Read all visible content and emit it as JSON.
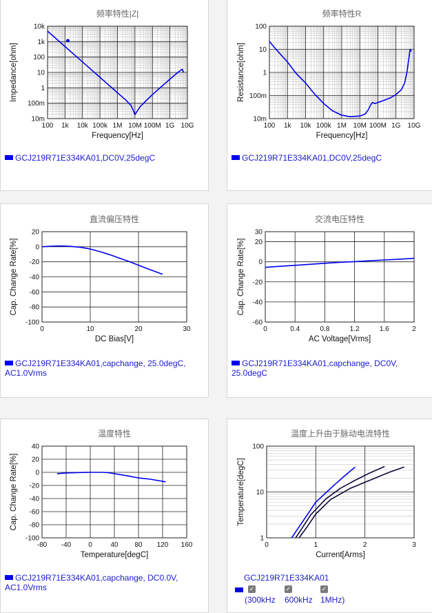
{
  "panels": [
    {
      "id": "impedance",
      "legend": "GCJ219R71E334KA01,DC0V,25degC",
      "chart_data": {
        "type": "line",
        "title": "频率特性|Z|",
        "xlabel": "Frequency[Hz]",
        "ylabel": "Impedance[ohm]",
        "xscale": "log",
        "yscale": "log",
        "xlim": [
          100,
          10000000000
        ],
        "ylim": [
          0.01,
          10000
        ],
        "xticks": [
          100,
          1000,
          10000,
          100000,
          1000000,
          10000000,
          100000000,
          1000000000,
          10000000000
        ],
        "xticklabels": [
          "100",
          "1k",
          "10k",
          "100k",
          "1M",
          "10M",
          "100M",
          "1G",
          "10G"
        ],
        "yticks": [
          0.01,
          0.1,
          1,
          10,
          100,
          1000,
          10000
        ],
        "yticklabels": [
          "10m",
          "100m",
          "1",
          "10",
          "100",
          "1k",
          "10k"
        ],
        "grid": true,
        "series": [
          {
            "color": "#0000ee",
            "x": [
              100,
              1000,
              10000,
              100000,
              1000000,
              3000000,
              6000000,
              8000000,
              10000000,
              12000000,
              20000000,
              50000000,
              100000000,
              300000000,
              1000000000,
              3000000000,
              5000000000,
              6000000000
            ],
            "y": [
              4800,
              480,
              48,
              4.8,
              0.48,
              0.16,
              0.07,
              0.035,
              0.018,
              0.025,
              0.06,
              0.17,
              0.36,
              1.1,
              3.6,
              10.5,
              16,
              10
            ]
          }
        ],
        "markers": [
          {
            "x": 1450,
            "y": 1150
          }
        ]
      }
    },
    {
      "id": "resistance",
      "legend": "GCJ219R71E334KA01,DC0V,25degC",
      "chart_data": {
        "type": "line",
        "title": "频率特性R",
        "xlabel": "Frequency[Hz]",
        "ylabel": "Resistance[ohm]",
        "xscale": "log",
        "yscale": "log",
        "xlim": [
          100,
          10000000000
        ],
        "ylim": [
          0.01,
          100
        ],
        "xticks": [
          100,
          1000,
          10000,
          100000,
          1000000,
          10000000,
          100000000,
          1000000000,
          10000000000
        ],
        "xticklabels": [
          "100",
          "1k",
          "10k",
          "100k",
          "1M",
          "10M",
          "100M",
          "1G",
          "10G"
        ],
        "yticks": [
          0.01,
          0.1,
          1,
          10,
          100
        ],
        "yticklabels": [
          "10m",
          "100m",
          "1",
          "10",
          "100"
        ],
        "grid": true,
        "series": [
          {
            "color": "#0000ee",
            "x": [
              100,
              150,
              300,
              1000,
              3000,
              10000,
              30000,
              100000,
              300000,
              1000000,
              3000000,
              10000000,
              20000000,
              30000000,
              40000000,
              50000000,
              70000000,
              100000000,
              200000000,
              500000000,
              1000000000,
              2000000000,
              3000000000,
              4000000000,
              5000000000,
              6000000000,
              7000000000
            ],
            "y": [
              22,
              15,
              8,
              2.8,
              0.9,
              0.35,
              0.12,
              0.045,
              0.022,
              0.014,
              0.012,
              0.013,
              0.016,
              0.025,
              0.04,
              0.05,
              0.045,
              0.05,
              0.06,
              0.08,
              0.11,
              0.18,
              0.35,
              1,
              3.5,
              10,
              8
            ]
          }
        ]
      }
    },
    {
      "id": "dc-bias",
      "legend": "GCJ219R71E334KA01,capchange, 25.0degC, AC1.0Vrms",
      "chart_data": {
        "type": "line",
        "title": "直流偏压特性",
        "xlabel": "DC Bias[V]",
        "ylabel": "Cap. Change Rate[%]",
        "xlim": [
          0,
          30
        ],
        "ylim": [
          -100,
          20
        ],
        "xticks": [
          0,
          10,
          20,
          30
        ],
        "yticks": [
          20,
          0,
          -20,
          -40,
          -60,
          -80,
          -100
        ],
        "grid": true,
        "series": [
          {
            "color": "#0000ee",
            "x": [
              0,
              2,
              4,
              6,
              8,
              10,
              12,
              14,
              16,
              18,
              20,
              22,
              25
            ],
            "y": [
              0,
              0.8,
              1,
              0.5,
              -0.8,
              -3,
              -6.5,
              -10.5,
              -15,
              -19.5,
              -24.5,
              -29.5,
              -36.5
            ]
          }
        ]
      }
    },
    {
      "id": "ac-voltage",
      "legend": "GCJ219R71E334KA01,capchange, DC0V, 25.0degC",
      "chart_data": {
        "type": "line",
        "title": "交流电压特性",
        "xlabel": "AC Voltage[Vrms]",
        "ylabel": "Cap. Change Rate[%]",
        "xlim": [
          0,
          2
        ],
        "ylim": [
          -60,
          30
        ],
        "xticks": [
          0,
          0.4,
          0.8,
          1.2,
          1.6,
          2
        ],
        "yticks": [
          30,
          20,
          0,
          -20,
          -40,
          -60
        ],
        "grid": true,
        "series": [
          {
            "color": "#0000ee",
            "x": [
              0,
              0.2,
              0.4,
              0.6,
              0.8,
              1.0,
              1.2,
              1.4,
              1.6,
              1.8,
              2.0
            ],
            "y": [
              -5.5,
              -4.5,
              -3.5,
              -2.5,
              -1.5,
              -0.5,
              0.2,
              1,
              1.8,
              2.6,
              3.5
            ]
          }
        ]
      }
    },
    {
      "id": "temperature",
      "legend": "GCJ219R71E334KA01,capchange, DC0.0V, AC1.0Vrms",
      "chart_data": {
        "type": "line",
        "title": "温度特性",
        "xlabel": "Temperature[degC]",
        "ylabel": "Cap. Change Rate[%]",
        "xlim": [
          -80,
          160
        ],
        "ylim": [
          -100,
          40
        ],
        "xticks": [
          -80,
          -40,
          0,
          40,
          80,
          120,
          160
        ],
        "yticks": [
          40,
          20,
          0,
          -20,
          -40,
          -60,
          -80,
          -100
        ],
        "grid": true,
        "series": [
          {
            "color": "#0000ee",
            "x": [
              -55,
              -40,
              -20,
              0,
              20,
              30,
              40,
              60,
              80,
              100,
              125
            ],
            "y": [
              -2,
              -1,
              -0.3,
              0,
              0,
              -0.5,
              -2,
              -5,
              -8.5,
              -10.5,
              -14.5
            ]
          }
        ]
      }
    },
    {
      "id": "ripple",
      "legend": "GCJ219R71E334KA01",
      "checkboxes": [
        {
          "label": "300kHz",
          "checked": true
        },
        {
          "label": "600kHz",
          "checked": true
        },
        {
          "label": "1MHz",
          "checked": true
        }
      ],
      "chart_data": {
        "type": "line",
        "title": "温度上升由于脉动电流特性",
        "xlabel": "Current[Arms]",
        "ylabel": "Temperature[degC]",
        "xlim": [
          0,
          3
        ],
        "ylim": [
          1,
          100
        ],
        "yscale": "log",
        "xticks": [
          0,
          1,
          2,
          3
        ],
        "yticks": [
          1,
          10,
          100
        ],
        "grid": true,
        "series": [
          {
            "name": "300kHz",
            "color": "#0000ee",
            "x": [
              0.51,
              0.6,
              0.8,
              1.0,
              1.2,
              1.4,
              1.6,
              1.8
            ],
            "y": [
              1,
              1.4,
              2.9,
              6,
              9.5,
              15,
              23,
              35
            ]
          },
          {
            "name": "600kHz",
            "color": "#0a0a3a",
            "x": [
              0.59,
              0.7,
              0.9,
              1.2,
              1.5,
              1.8,
              2.1,
              2.4
            ],
            "y": [
              1,
              1.5,
              3.2,
              7,
              12,
              18,
              26,
              36
            ]
          },
          {
            "name": "1MHz",
            "color": "#0a0a3a",
            "x": [
              0.66,
              0.8,
              1.0,
              1.3,
              1.7,
              2.1,
              2.5,
              2.8
            ],
            "y": [
              1,
              1.6,
              3.3,
              6.8,
              12,
              18,
              27,
              35
            ]
          }
        ]
      }
    }
  ]
}
